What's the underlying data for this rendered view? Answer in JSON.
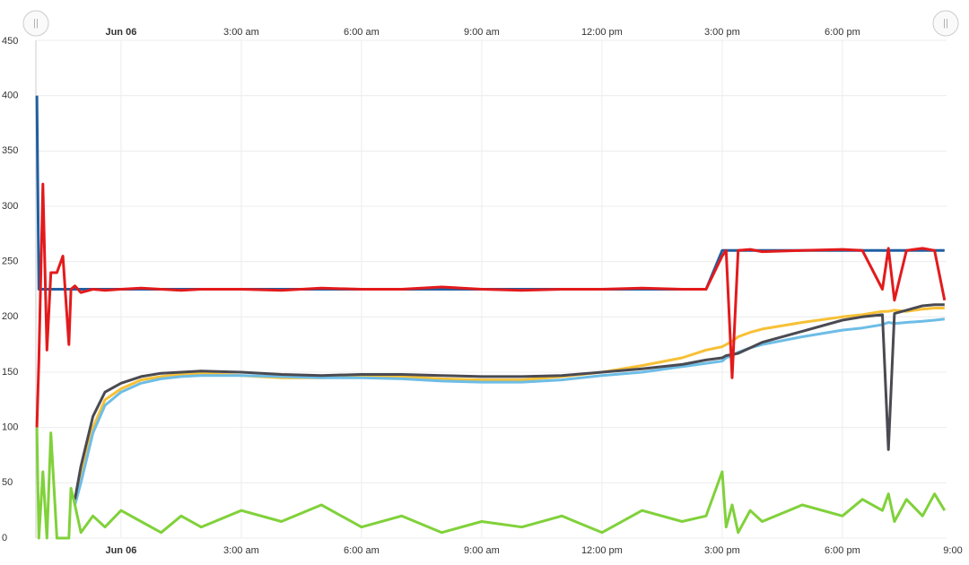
{
  "chart_data": {
    "type": "line",
    "x": [
      -2.1,
      -2.05,
      -1.95,
      -1.85,
      -1.75,
      -1.6,
      -1.45,
      -1.3,
      -1.25,
      -1.15,
      -1.0,
      -0.7,
      -0.4,
      0,
      0.5,
      1,
      1.5,
      2,
      3,
      4,
      5,
      6,
      7,
      8,
      9,
      10,
      11,
      12,
      13,
      14,
      14.6,
      15.0,
      15.1,
      15.25,
      15.4,
      15.7,
      16,
      17,
      18,
      18.5,
      19,
      19.15,
      19.3,
      19.6,
      20,
      20.3,
      20.55
    ],
    "series": [
      {
        "color": "#1f5fa0",
        "values": [
          400,
          225,
          225,
          225,
          225,
          225,
          225,
          225,
          225,
          225,
          225,
          225,
          225,
          225,
          225,
          225,
          225,
          225,
          225,
          225,
          225,
          225,
          225,
          225,
          225,
          225,
          225,
          225,
          225,
          225,
          225,
          260,
          260,
          260,
          260,
          260,
          260,
          260,
          260,
          260,
          260,
          260,
          260,
          260,
          260,
          260,
          260
        ]
      },
      {
        "color": "#f7c035",
        "values": [
          null,
          null,
          null,
          null,
          null,
          null,
          null,
          null,
          null,
          35,
          60,
          100,
          125,
          135,
          143,
          146,
          148,
          149,
          147,
          145,
          145,
          146,
          146,
          144,
          143,
          143,
          146,
          150,
          156,
          163,
          170,
          173,
          175,
          178,
          182,
          186,
          189,
          195,
          200,
          202,
          205,
          205,
          206,
          205,
          207,
          208,
          208
        ]
      },
      {
        "color": "#6dbde6",
        "values": [
          null,
          null,
          null,
          null,
          null,
          null,
          null,
          null,
          null,
          30,
          50,
          95,
          120,
          132,
          140,
          144,
          146,
          147,
          147,
          146,
          145,
          145,
          144,
          142,
          141,
          141,
          143,
          147,
          150,
          155,
          158,
          160,
          163,
          165,
          168,
          172,
          175,
          182,
          188,
          190,
          193,
          195,
          194,
          195,
          196,
          197,
          198
        ]
      },
      {
        "color": "#4a4a52",
        "values": [
          null,
          null,
          null,
          null,
          null,
          null,
          null,
          null,
          null,
          35,
          65,
          110,
          132,
          140,
          146,
          149,
          150,
          151,
          150,
          148,
          147,
          148,
          148,
          147,
          146,
          146,
          147,
          150,
          153,
          157,
          161,
          163,
          165,
          166,
          167,
          172,
          177,
          187,
          197,
          200,
          202,
          80,
          203,
          206,
          210,
          211,
          211
        ]
      },
      {
        "color": "#e31a1c",
        "values": [
          100,
          160,
          320,
          170,
          240,
          240,
          255,
          175,
          225,
          228,
          222,
          225,
          224,
          225,
          226,
          225,
          224,
          225,
          225,
          224,
          226,
          225,
          225,
          227,
          225,
          224,
          225,
          225,
          226,
          225,
          225,
          255,
          260,
          145,
          260,
          261,
          259,
          260,
          261,
          260,
          225,
          262,
          215,
          260,
          262,
          260,
          215
        ]
      },
      {
        "color": "#80d13a",
        "values": [
          100,
          0,
          60,
          0,
          95,
          0,
          0,
          0,
          45,
          30,
          5,
          20,
          10,
          25,
          15,
          5,
          20,
          10,
          25,
          15,
          30,
          10,
          20,
          5,
          15,
          10,
          20,
          5,
          25,
          15,
          20,
          60,
          10,
          30,
          5,
          25,
          15,
          30,
          20,
          35,
          25,
          40,
          15,
          35,
          20,
          40,
          25
        ]
      }
    ],
    "xlim": [
      -2.125,
      20.6
    ],
    "xticks": [
      {
        "value": 0,
        "label": "Jun 06"
      },
      {
        "value": 3,
        "label": "3:00 am"
      },
      {
        "value": 6,
        "label": "6:00 am"
      },
      {
        "value": 9,
        "label": "9:00 am"
      },
      {
        "value": 12,
        "label": "12:00 pm"
      },
      {
        "value": 15,
        "label": "3:00 pm"
      },
      {
        "value": 18,
        "label": "6:00 pm"
      },
      {
        "value": 21,
        "label": "9:00"
      }
    ],
    "ylim": [
      0,
      450
    ],
    "yticks": [
      0,
      50,
      100,
      150,
      200,
      250,
      300,
      350,
      400,
      450
    ],
    "grid": true
  }
}
